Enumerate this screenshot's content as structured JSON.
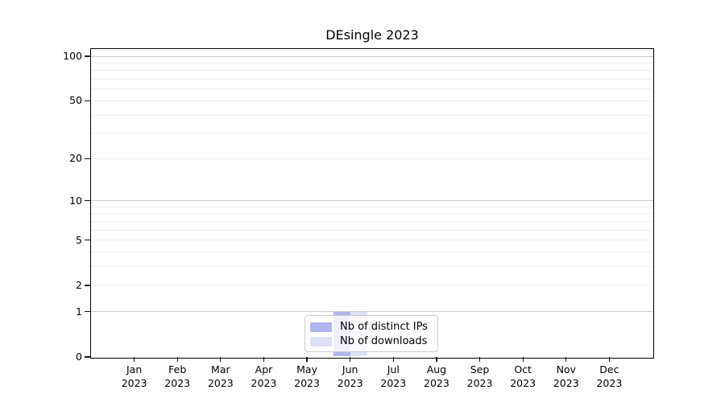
{
  "title": "DEsingle 2023",
  "chart_data": {
    "type": "bar",
    "title": "DEsingle 2023",
    "categories": [
      "Jan",
      "Feb",
      "Mar",
      "Apr",
      "May",
      "Jun",
      "Jul",
      "Aug",
      "Sep",
      "Oct",
      "Nov",
      "Dec"
    ],
    "year": "2023",
    "series": [
      {
        "name": "Nb of distinct IPs",
        "color": "#b0b5ee",
        "values": [
          0,
          0,
          0,
          0,
          0,
          1,
          0,
          0,
          0,
          0,
          0,
          0
        ]
      },
      {
        "name": "Nb of downloads",
        "color": "#dfe2f7",
        "values": [
          0,
          0,
          0,
          0,
          0,
          1,
          0,
          0,
          0,
          0,
          0,
          0
        ]
      }
    ],
    "xlabel": "",
    "ylabel": "",
    "yaxis": {
      "scale": "log10(value+1)",
      "tick_values": [
        0,
        1,
        2,
        5,
        10,
        20,
        50,
        100
      ],
      "ylim": [
        0,
        112
      ]
    },
    "grid": {
      "major_values": [
        1,
        10,
        100
      ],
      "minor_values": [
        2,
        3,
        4,
        5,
        6,
        7,
        8,
        9,
        20,
        30,
        40,
        50,
        60,
        70,
        80,
        90
      ]
    },
    "legend": {
      "position": "lower center",
      "entries": [
        "Nb of distinct IPs",
        "Nb of downloads"
      ]
    },
    "colors": {
      "distinct_ips": "#b0b5ee",
      "downloads": "#dfe2f7",
      "major_grid": "#c9c9c9",
      "minor_grid": "#ededed",
      "axis": "#000000"
    }
  }
}
